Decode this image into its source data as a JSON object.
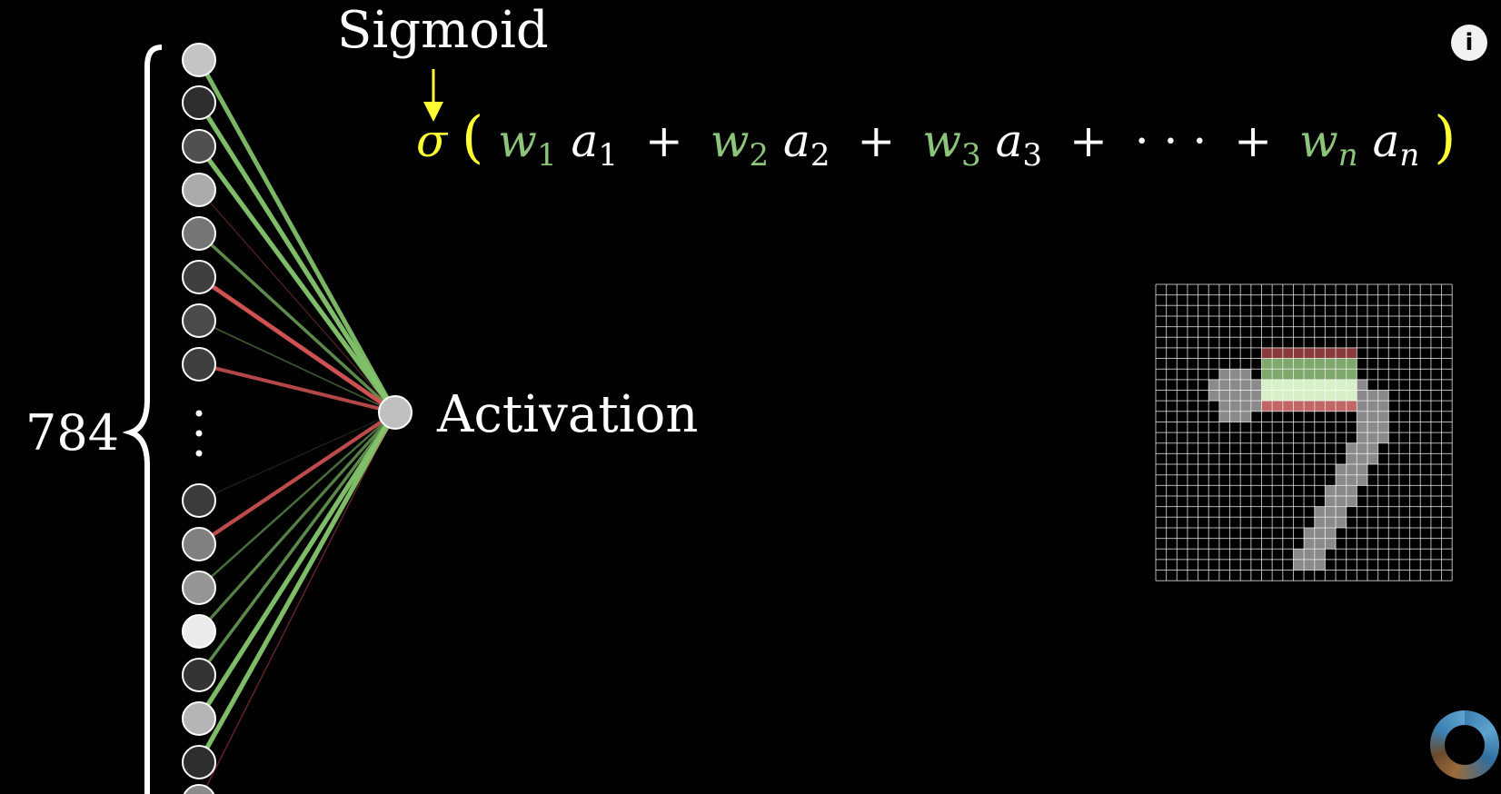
{
  "title_label": "Sigmoid",
  "count_label": "784",
  "output_label": "Activation",
  "formula": {
    "sigma": "σ",
    "open_paren": "(",
    "close_paren": ")",
    "terms": [
      {
        "w": "w",
        "w_sub": "1",
        "a": "a",
        "a_sub": "1"
      },
      {
        "w": "w",
        "w_sub": "2",
        "a": "a",
        "a_sub": "2"
      },
      {
        "w": "w",
        "w_sub": "3",
        "a": "a",
        "a_sub": "3"
      },
      {
        "w": "w",
        "w_sub": "n",
        "a": "a",
        "a_sub": "n"
      }
    ],
    "plus": "+",
    "ellipsis": "· · ·"
  },
  "colors": {
    "background": "#000000",
    "sigma_yellow": "#ffff33",
    "weight_green": "#8cc47a",
    "positive_edge": "#83c46b",
    "negative_edge": "#e85c5c",
    "text": "#ffffff"
  },
  "input_neurons": [
    {
      "activation": 0.82,
      "weight": 0.9
    },
    {
      "activation": 0.12,
      "weight": 0.95
    },
    {
      "activation": 0.28,
      "weight": 0.95
    },
    {
      "activation": 0.7,
      "weight": -0.15
    },
    {
      "activation": 0.45,
      "weight": 0.6
    },
    {
      "activation": 0.2,
      "weight": -0.85
    },
    {
      "activation": 0.25,
      "weight": 0.25
    },
    {
      "activation": 0.2,
      "weight": -0.7
    },
    {
      "activation": 0.18,
      "weight": 0.05
    },
    {
      "activation": 0.5,
      "weight": -0.75
    },
    {
      "activation": 0.6,
      "weight": 0.4
    },
    {
      "activation": 1.0,
      "weight": 0.55
    },
    {
      "activation": 0.15,
      "weight": 0.6
    },
    {
      "activation": 0.75,
      "weight": 0.95
    },
    {
      "activation": 0.12,
      "weight": 0.95
    },
    {
      "activation": 0.55,
      "weight": -0.2
    },
    {
      "activation": 0.6,
      "weight": 0.1
    }
  ],
  "output_neuron": {
    "activation": 0.8
  },
  "digit_grid": {
    "size": 28,
    "stroke_cells": [
      [
        8,
        6
      ],
      [
        8,
        7
      ],
      [
        8,
        8
      ],
      [
        9,
        5
      ],
      [
        9,
        6
      ],
      [
        9,
        7
      ],
      [
        9,
        8
      ],
      [
        9,
        9
      ],
      [
        9,
        10
      ],
      [
        9,
        11
      ],
      [
        9,
        12
      ],
      [
        9,
        13
      ],
      [
        9,
        14
      ],
      [
        9,
        15
      ],
      [
        9,
        16
      ],
      [
        9,
        17
      ],
      [
        9,
        18
      ],
      [
        9,
        19
      ],
      [
        10,
        5
      ],
      [
        10,
        6
      ],
      [
        10,
        7
      ],
      [
        10,
        8
      ],
      [
        10,
        9
      ],
      [
        10,
        10
      ],
      [
        10,
        11
      ],
      [
        10,
        12
      ],
      [
        10,
        13
      ],
      [
        10,
        14
      ],
      [
        10,
        15
      ],
      [
        10,
        16
      ],
      [
        10,
        17
      ],
      [
        10,
        18
      ],
      [
        10,
        19
      ],
      [
        10,
        20
      ],
      [
        10,
        21
      ],
      [
        11,
        6
      ],
      [
        11,
        7
      ],
      [
        11,
        8
      ],
      [
        11,
        9
      ],
      [
        11,
        18
      ],
      [
        11,
        19
      ],
      [
        11,
        20
      ],
      [
        11,
        21
      ],
      [
        12,
        6
      ],
      [
        12,
        7
      ],
      [
        12,
        8
      ],
      [
        12,
        19
      ],
      [
        12,
        20
      ],
      [
        12,
        21
      ],
      [
        13,
        19
      ],
      [
        13,
        20
      ],
      [
        13,
        21
      ],
      [
        14,
        19
      ],
      [
        14,
        20
      ],
      [
        14,
        21
      ],
      [
        15,
        18
      ],
      [
        15,
        19
      ],
      [
        15,
        20
      ],
      [
        16,
        18
      ],
      [
        16,
        19
      ],
      [
        16,
        20
      ],
      [
        17,
        17
      ],
      [
        17,
        18
      ],
      [
        17,
        19
      ],
      [
        18,
        17
      ],
      [
        18,
        18
      ],
      [
        18,
        19
      ],
      [
        19,
        16
      ],
      [
        19,
        17
      ],
      [
        19,
        18
      ],
      [
        20,
        16
      ],
      [
        20,
        17
      ],
      [
        20,
        18
      ],
      [
        21,
        15
      ],
      [
        21,
        16
      ],
      [
        21,
        17
      ],
      [
        22,
        15
      ],
      [
        22,
        16
      ],
      [
        22,
        17
      ],
      [
        23,
        14
      ],
      [
        23,
        15
      ],
      [
        23,
        16
      ],
      [
        24,
        14
      ],
      [
        24,
        15
      ],
      [
        24,
        16
      ],
      [
        25,
        13
      ],
      [
        25,
        14
      ],
      [
        25,
        15
      ],
      [
        26,
        13
      ],
      [
        26,
        14
      ],
      [
        26,
        15
      ]
    ],
    "positive_rows": [
      7,
      8,
      9,
      10
    ],
    "negative_rows": [
      6,
      11
    ],
    "highlight_cols": [
      10,
      18
    ]
  }
}
